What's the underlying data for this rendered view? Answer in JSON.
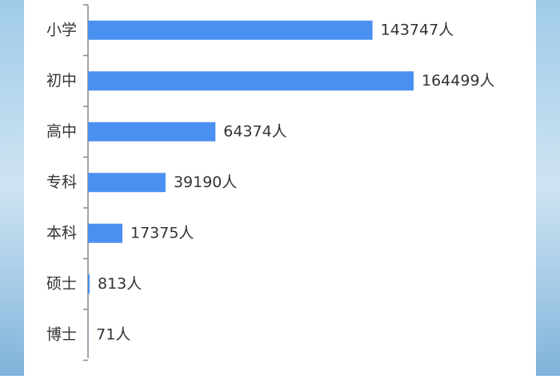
{
  "chart_data": {
    "type": "bar",
    "orientation": "horizontal",
    "categories": [
      "小学",
      "初中",
      "高中",
      "专科",
      "本科",
      "硕士",
      "博士"
    ],
    "values": [
      143747,
      164499,
      64374,
      39190,
      17375,
      813,
      71
    ],
    "value_labels": [
      "143747人",
      "164499人",
      "64374人",
      "39190人",
      "17375人",
      "813人",
      "71人"
    ],
    "color": "#4a90f0"
  }
}
